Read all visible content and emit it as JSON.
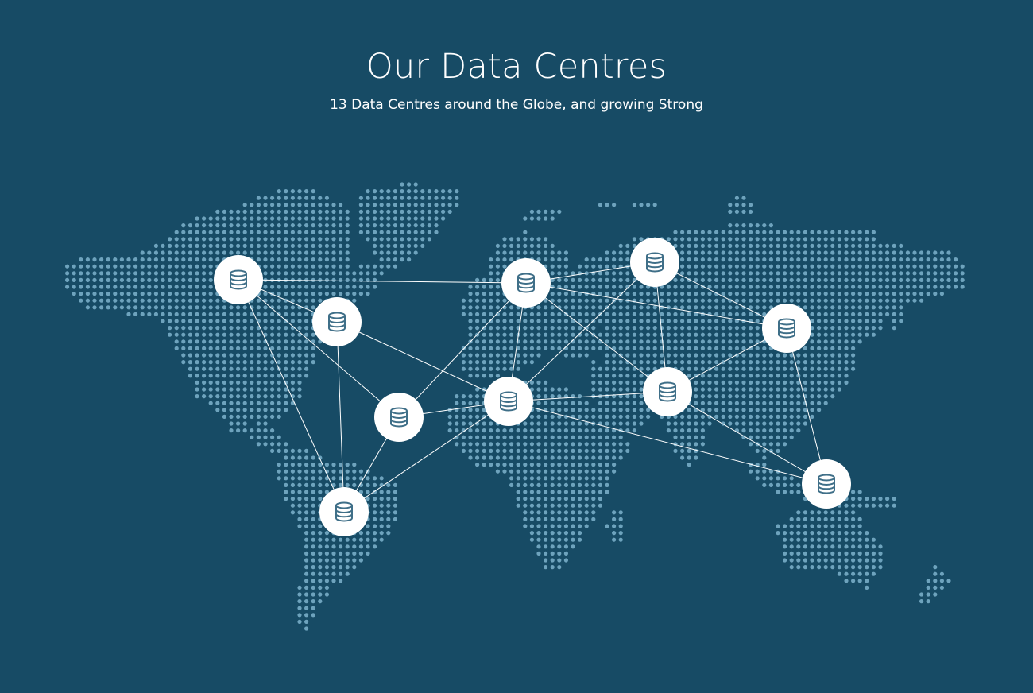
{
  "section": {
    "title": "Our Data Centres",
    "subtitle": "13 Data Centres around the Globe, and growing Strong"
  },
  "colors": {
    "background": "#174b65",
    "dots": "#6ea3bd",
    "links": "#ffffff",
    "node_fill": "#ffffff",
    "node_icon": "#3f6f88"
  },
  "icons": {
    "node": "database-icon"
  }
}
